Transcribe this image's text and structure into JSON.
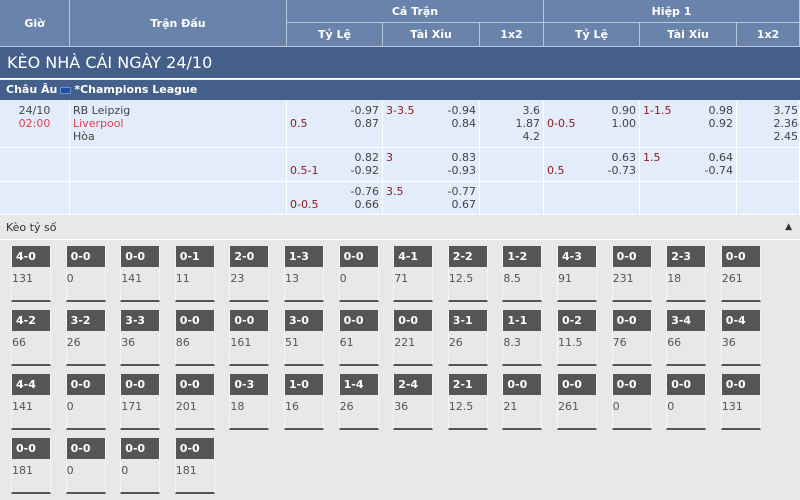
{
  "header": {
    "gio": "Giờ",
    "tran_dau": "Trận Đấu",
    "ca_tran": "Cả Trận",
    "hiep1": "Hiệp 1",
    "ty_le": "Tỷ Lệ",
    "tai_xiu": "Tài Xỉu",
    "x12": "1x2"
  },
  "band_title": "KÈO NHÀ CÁI NGÀY 24/10",
  "league": {
    "region": "Châu Âu",
    "name": "*Champions League",
    "flag_icon": "eu-flag-icon"
  },
  "match": {
    "date": "24/10",
    "time": "02:00",
    "home": "RB Leipzig",
    "away": "Liverpool",
    "draw": "Hòa",
    "rows": [
      {
        "hdp": "0.5",
        "hdp_o1": "-0.97",
        "hdp_o2": "0.87",
        "ou": "3-3.5",
        "ou_o1": "-0.94",
        "ou_o2": "0.84",
        "x12": [
          "3.6",
          "1.87",
          "4.2"
        ],
        "h1_hdp": "0-0.5",
        "h1_hdp_o1": "0.90",
        "h1_hdp_o2": "1.00",
        "h1_ou": "1-1.5",
        "h1_ou_o1": "0.98",
        "h1_ou_o2": "0.92",
        "h1_x12": [
          "3.75",
          "2.36",
          "2.45"
        ]
      },
      {
        "hdp": "0.5-1",
        "hdp_o1": "0.82",
        "hdp_o2": "-0.92",
        "ou": "3",
        "ou_o1": "0.83",
        "ou_o2": "-0.93",
        "h1_hdp": "0.5",
        "h1_hdp_o1": "0.63",
        "h1_hdp_o2": "-0.73",
        "h1_ou": "1.5",
        "h1_ou_o1": "0.64",
        "h1_ou_o2": "-0.74"
      },
      {
        "hdp": "0-0.5",
        "hdp_o1": "-0.76",
        "hdp_o2": "0.66",
        "ou": "3.5",
        "ou_o1": "-0.77",
        "ou_o2": "0.67"
      }
    ]
  },
  "correct_score": {
    "title": "Kèo tỷ số",
    "collapse_icon": "caret-up-icon",
    "cards": [
      {
        "s": "4-0",
        "v": "131"
      },
      {
        "s": "0-0",
        "v": "0"
      },
      {
        "s": "0-0",
        "v": "141"
      },
      {
        "s": "0-1",
        "v": "11"
      },
      {
        "s": "2-0",
        "v": "23"
      },
      {
        "s": "1-3",
        "v": "13"
      },
      {
        "s": "0-0",
        "v": "0"
      },
      {
        "s": "4-1",
        "v": "71"
      },
      {
        "s": "2-2",
        "v": "12.5"
      },
      {
        "s": "1-2",
        "v": "8.5"
      },
      {
        "s": "4-3",
        "v": "91"
      },
      {
        "s": "0-0",
        "v": "231"
      },
      {
        "s": "2-3",
        "v": "18"
      },
      {
        "s": "0-0",
        "v": "261"
      },
      {
        "s": "4-2",
        "v": "66"
      },
      {
        "s": "3-2",
        "v": "26"
      },
      {
        "s": "3-3",
        "v": "36"
      },
      {
        "s": "0-0",
        "v": "86"
      },
      {
        "s": "0-0",
        "v": "161"
      },
      {
        "s": "3-0",
        "v": "51"
      },
      {
        "s": "0-0",
        "v": "61"
      },
      {
        "s": "0-0",
        "v": "221"
      },
      {
        "s": "3-1",
        "v": "26"
      },
      {
        "s": "1-1",
        "v": "8.3"
      },
      {
        "s": "0-2",
        "v": "11.5"
      },
      {
        "s": "0-0",
        "v": "76"
      },
      {
        "s": "3-4",
        "v": "66"
      },
      {
        "s": "0-4",
        "v": "36"
      },
      {
        "s": "4-4",
        "v": "141"
      },
      {
        "s": "0-0",
        "v": "0"
      },
      {
        "s": "0-0",
        "v": "171"
      },
      {
        "s": "0-0",
        "v": "201"
      },
      {
        "s": "0-3",
        "v": "18"
      },
      {
        "s": "1-0",
        "v": "16"
      },
      {
        "s": "1-4",
        "v": "26"
      },
      {
        "s": "2-4",
        "v": "36"
      },
      {
        "s": "2-1",
        "v": "12.5"
      },
      {
        "s": "0-0",
        "v": "21"
      },
      {
        "s": "0-0",
        "v": "261"
      },
      {
        "s": "0-0",
        "v": "0"
      },
      {
        "s": "0-0",
        "v": "0"
      },
      {
        "s": "0-0",
        "v": "131"
      },
      {
        "s": "0-0",
        "v": "181"
      },
      {
        "s": "0-0",
        "v": "0"
      },
      {
        "s": "0-0",
        "v": "0"
      },
      {
        "s": "0-0",
        "v": "181"
      }
    ]
  }
}
